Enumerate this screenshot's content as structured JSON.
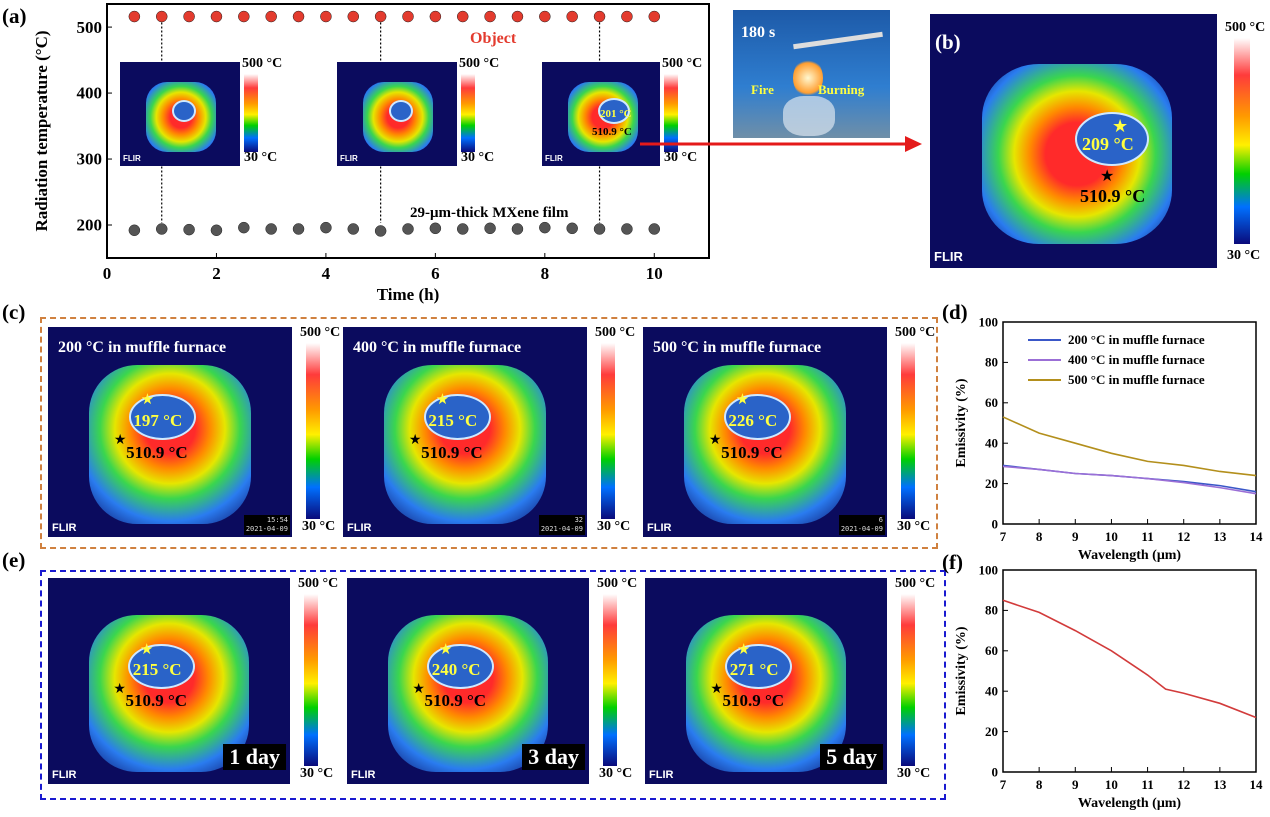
{
  "panel_labels": {
    "a": "(a)",
    "b": "(b)",
    "c": "(c)",
    "d": "(d)",
    "e": "(e)",
    "f": "(f)"
  },
  "scale": {
    "max": "500 °C",
    "min": "30 °C"
  },
  "flir": "FLIR",
  "star_temp": "510.9 °C",
  "panel_a": {
    "object_label": "Object",
    "film_label": "29-μm-thick MXene film",
    "inset3_temp": "201 °C",
    "inset3_star": "510.9 °C"
  },
  "photo": {
    "time": "180 s",
    "fire": "Fire",
    "burning": "Burning"
  },
  "panel_b": {
    "temp": "209 °C"
  },
  "panel_c": [
    {
      "caption": "200 °C in muffle furnace",
      "temp": "197 °C",
      "stamp_time": "15:54",
      "stamp_date": "2021-04-09"
    },
    {
      "caption": "400 °C in muffle furnace",
      "temp": "215 °C",
      "stamp_time": "32",
      "stamp_date": "2021-04-09"
    },
    {
      "caption": "500 °C in muffle furnace",
      "temp": "226 °C",
      "stamp_time": "6",
      "stamp_date": "2021-04-09"
    }
  ],
  "panel_e": [
    {
      "day": "1 day",
      "temp": "215 °C"
    },
    {
      "day": "3 day",
      "temp": "240 °C"
    },
    {
      "day": "5 day",
      "temp": "271 °C"
    }
  ],
  "chart_data": [
    {
      "type": "scatter",
      "panel": "a",
      "xlabel": "Time (h)",
      "ylabel": "Radiation temperature (°C)",
      "xlim": [
        0,
        11
      ],
      "ylim": [
        150,
        535
      ],
      "xticks": [
        0,
        2,
        4,
        6,
        8,
        10
      ],
      "yticks": [
        200,
        300,
        400,
        500
      ],
      "series": [
        {
          "name": "Object",
          "color": "#e33b2e",
          "x": [
            0.5,
            1,
            1.5,
            2,
            2.5,
            3,
            3.5,
            4,
            4.5,
            5,
            5.5,
            6,
            6.5,
            7,
            7.5,
            8,
            8.5,
            9,
            9.5,
            10
          ],
          "y": [
            516,
            516,
            516,
            516,
            516,
            516,
            516,
            516,
            516,
            516,
            516,
            516,
            516,
            516,
            516,
            516,
            516,
            516,
            516,
            516
          ]
        },
        {
          "name": "29-μm-thick MXene film",
          "color": "#555555",
          "x": [
            0.5,
            1,
            1.5,
            2,
            2.5,
            3,
            3.5,
            4,
            4.5,
            5,
            5.5,
            6,
            6.5,
            7,
            7.5,
            8,
            8.5,
            9,
            9.5,
            10
          ],
          "y": [
            192,
            194,
            193,
            192,
            196,
            194,
            194,
            196,
            194,
            191,
            194,
            195,
            194,
            195,
            194,
            196,
            195,
            194,
            194,
            194
          ]
        }
      ],
      "marked_x": [
        1,
        5,
        9
      ]
    },
    {
      "type": "line",
      "panel": "d",
      "xlabel": "Wavelength (μm)",
      "ylabel": "Emissivity (%)",
      "xlim": [
        7,
        14
      ],
      "ylim": [
        0,
        100
      ],
      "xticks": [
        7,
        8,
        9,
        10,
        11,
        12,
        13,
        14
      ],
      "yticks": [
        0,
        20,
        40,
        60,
        80,
        100
      ],
      "legend": "top-right",
      "series": [
        {
          "name": "200 °C in muffle furnace",
          "color": "#3a57c8",
          "x": [
            7,
            8,
            9,
            10,
            11,
            12,
            13,
            14
          ],
          "y": [
            29,
            27,
            25,
            24,
            22.5,
            21,
            19,
            16
          ]
        },
        {
          "name": "400 °C in muffle furnace",
          "color": "#9b6fd6",
          "x": [
            7,
            8,
            9,
            10,
            11,
            12,
            13,
            14
          ],
          "y": [
            28.5,
            27,
            25,
            24,
            22.5,
            20.5,
            18,
            15
          ]
        },
        {
          "name": "500 °C in muffle furnace",
          "color": "#b38f1c",
          "x": [
            7,
            8,
            9,
            10,
            11,
            12,
            13,
            14
          ],
          "y": [
            53,
            45,
            40,
            35,
            31,
            29,
            26,
            24
          ]
        }
      ]
    },
    {
      "type": "line",
      "panel": "f",
      "xlabel": "Wavelength (μm)",
      "ylabel": "Emissivity (%)",
      "xlim": [
        7,
        14
      ],
      "ylim": [
        0,
        100
      ],
      "xticks": [
        7,
        8,
        9,
        10,
        11,
        12,
        13,
        14
      ],
      "yticks": [
        0,
        20,
        40,
        60,
        80,
        100
      ],
      "series": [
        {
          "color": "#d23b3b",
          "x": [
            7,
            8,
            9,
            10,
            11,
            11.5,
            12,
            13,
            14
          ],
          "y": [
            85,
            79,
            70,
            60,
            48,
            41,
            39,
            34,
            27
          ]
        }
      ]
    }
  ]
}
